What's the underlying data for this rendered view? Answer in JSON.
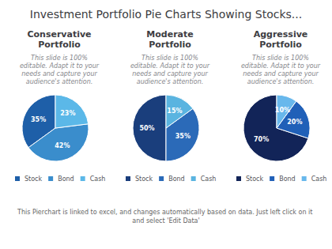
{
  "title": "Investment Portfolio Pie Charts Showing Stocks...",
  "annotations": [
    "This Pierchart is linked to excel, and changes automatically based on data. Just left click on it and select 'Edit Data'"
  ],
  "chart_data": [
    {
      "type": "pie",
      "title": "Conservative\nPortfolio",
      "subtitle": "This slide is 100%\neditable. Adapt it to your\nneeds and capture your\naudience's attention.",
      "categories": [
        "Stock",
        "Bond",
        "Cash"
      ],
      "values": [
        35,
        42,
        23
      ],
      "value_labels": [
        "35%",
        "42%",
        "23%"
      ],
      "data_labels": true,
      "colors": [
        "#1e5fa8",
        "#3a8dcc",
        "#5bb8e8"
      ],
      "legend": "bottom"
    },
    {
      "type": "pie",
      "title": "Moderate\nPortfolio",
      "subtitle": "This slide is 100%\neditable. Adapt it to your\nneeds and capture your\naudience's attention.",
      "categories": [
        "Stock",
        "Bond",
        "Cash"
      ],
      "values": [
        50,
        35,
        15
      ],
      "value_labels": [
        "50%",
        "35%",
        "15%"
      ],
      "data_labels": true,
      "colors": [
        "#1a3e7c",
        "#2b6ab8",
        "#5ab4e0"
      ],
      "legend": "bottom"
    },
    {
      "type": "pie",
      "title": "Aggressive\nPortfolio",
      "subtitle": "This slide is 100%\neditable. Adapt it to your\nneeds and capture your\naudience's attention.",
      "categories": [
        "Stock",
        "Bond",
        "Cash"
      ],
      "values": [
        70,
        20,
        10
      ],
      "value_labels": [
        "70%",
        "20%",
        "10%"
      ],
      "data_labels": true,
      "colors": [
        "#122458",
        "#2060b8",
        "#68b8ec"
      ],
      "legend": "bottom"
    }
  ]
}
